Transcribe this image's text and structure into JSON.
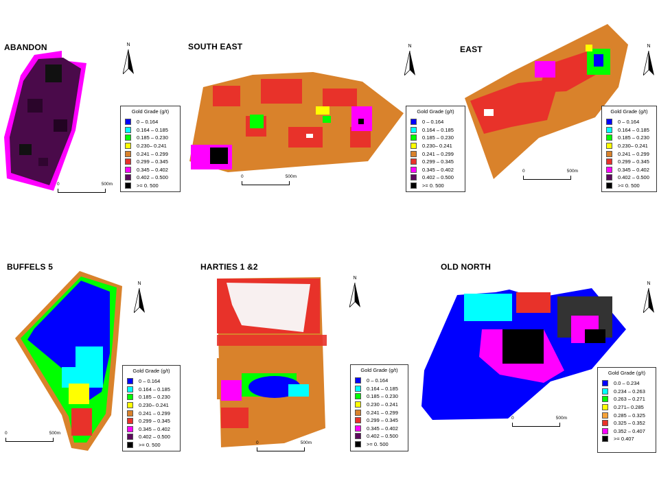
{
  "north_label": "N",
  "scale": {
    "start": "0",
    "end": "500m"
  },
  "legend_standard": {
    "title": "Gold Grade (g/t)",
    "items": [
      {
        "label": "0 – 0.164",
        "color": "#0000ff"
      },
      {
        "label": "0.164 – 0.185",
        "color": "#00ffff"
      },
      {
        "label": "0.185 – 0.230",
        "color": "#00ff00"
      },
      {
        "label": "0.230– 0.241",
        "color": "#ffff00"
      },
      {
        "label": "0.241 – 0.299",
        "color": "#d9822b"
      },
      {
        "label": "0.299 – 0.345",
        "color": "#e8322a"
      },
      {
        "label": "0.345 – 0.402",
        "color": "#ff00ff"
      },
      {
        "label": "0.402 – 0.500",
        "color": "#5c0a5c"
      },
      {
        "label": ">= 0. 500",
        "color": "#000000"
      }
    ]
  },
  "legend_harties": {
    "title": "Gold Grade (g/t)",
    "items": [
      {
        "label": "0 – 0.164",
        "color": "#0000ff"
      },
      {
        "label": "0.164 – 0.185",
        "color": "#00ffff"
      },
      {
        "label": "0.185 – 0.230",
        "color": "#00ff00"
      },
      {
        "label": "0.230 – 0.241",
        "color": "#ffff00"
      },
      {
        "label": "0.241 – 0.299",
        "color": "#d9822b"
      },
      {
        "label": "0.299 – 0.345",
        "color": "#e8322a"
      },
      {
        "label": "0.345 – 0.402",
        "color": "#ff00ff"
      },
      {
        "label": "0.402 – 0.500",
        "color": "#5c0a5c"
      },
      {
        "label": ">= 0. 500",
        "color": "#000000"
      }
    ]
  },
  "legend_old_north": {
    "title": "Gold Grade (g/t)",
    "items": [
      {
        "label": "0.0     – 0.234",
        "color": "#0000ff"
      },
      {
        "label": "0.234 – 0.263",
        "color": "#00ffff"
      },
      {
        "label": "0.263 – 0.271",
        "color": "#00ff00"
      },
      {
        "label": "0.271– 0.285",
        "color": "#ffff00"
      },
      {
        "label": "0.285 – 0.325",
        "color": "#f5a23a"
      },
      {
        "label": "0.325 – 0.352",
        "color": "#e8322a"
      },
      {
        "label": "0.352 – 0.407",
        "color": "#ff00ff"
      },
      {
        "label": ">= 0.407",
        "color": "#000000"
      }
    ]
  },
  "panels": [
    {
      "title": "ABANDON"
    },
    {
      "title": "SOUTH EAST"
    },
    {
      "title": "EAST"
    },
    {
      "title": "BUFFELS 5"
    },
    {
      "title": "HARTIES 1 &2"
    },
    {
      "title": "OLD NORTH"
    }
  ]
}
